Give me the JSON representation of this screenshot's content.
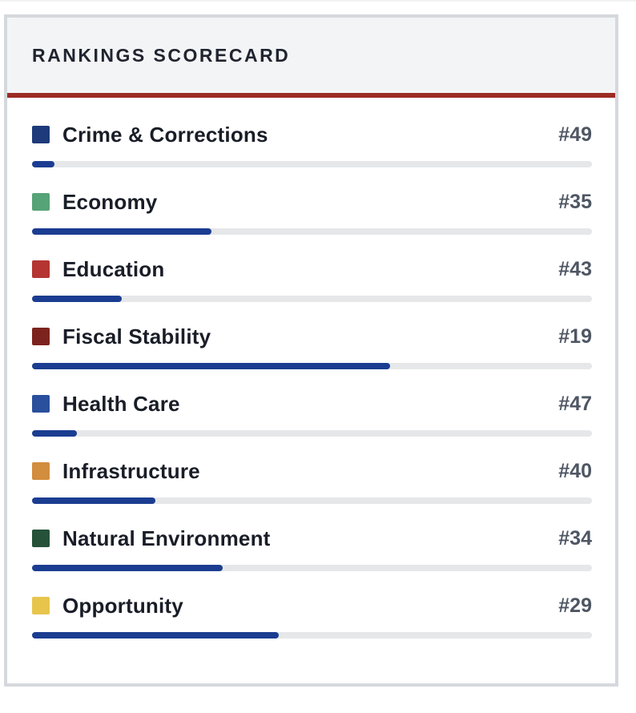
{
  "header": {
    "title": "RANKINGS SCORECARD"
  },
  "theme": {
    "accent_bar_color": "#9d2b25",
    "bar_fill_color": "#1b3d91",
    "bar_track_color": "#e5e7e9",
    "header_background": "#f3f4f6",
    "card_border_color": "#d5d8dc",
    "label_color": "#191d27",
    "rank_color": "#4e5663"
  },
  "rows": [
    {
      "label": "Crime & Corrections",
      "rank": "#49",
      "swatch": "#1e3a7b",
      "bar_percent": 4
    },
    {
      "label": "Economy",
      "rank": "#35",
      "swatch": "#56a377",
      "bar_percent": 32
    },
    {
      "label": "Education",
      "rank": "#43",
      "swatch": "#b43531",
      "bar_percent": 16
    },
    {
      "label": "Fiscal Stability",
      "rank": "#19",
      "swatch": "#7d231e",
      "bar_percent": 64
    },
    {
      "label": "Health Care",
      "rank": "#47",
      "swatch": "#2a4f9c",
      "bar_percent": 8
    },
    {
      "label": "Infrastructure",
      "rank": "#40",
      "swatch": "#d28d3e",
      "bar_percent": 22
    },
    {
      "label": "Natural Environment",
      "rank": "#34",
      "swatch": "#255239",
      "bar_percent": 34
    },
    {
      "label": "Opportunity",
      "rank": "#29",
      "swatch": "#e7c54d",
      "bar_percent": 44
    }
  ],
  "chart_data": {
    "type": "bar",
    "title": "RANKINGS SCORECARD",
    "categories": [
      "Crime & Corrections",
      "Economy",
      "Education",
      "Fiscal Stability",
      "Health Care",
      "Infrastructure",
      "Natural Environment",
      "Opportunity"
    ],
    "values": [
      49,
      35,
      43,
      19,
      47,
      40,
      34,
      29
    ],
    "value_labels": [
      "#49",
      "#35",
      "#43",
      "#19",
      "#47",
      "#40",
      "#34",
      "#29"
    ],
    "bar_fill_percent": [
      4,
      32,
      16,
      64,
      8,
      22,
      34,
      44
    ],
    "legend_position": "none",
    "grid": false
  }
}
